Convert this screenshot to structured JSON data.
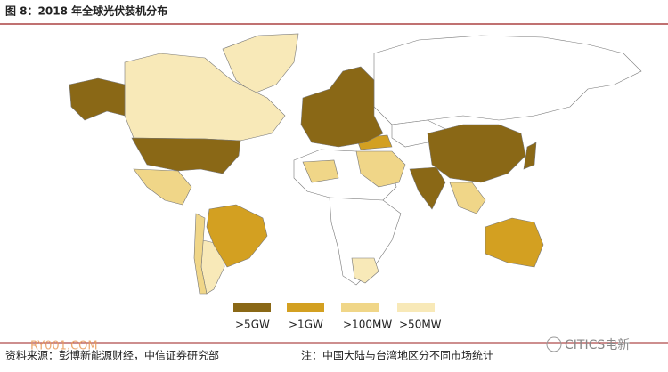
{
  "header": {
    "title": "图 8：2018 年全球光伏装机分布"
  },
  "legend": [
    {
      "label": ">5GW",
      "color": "#8a6816"
    },
    {
      "label": ">1GW",
      "color": "#d3a021"
    },
    {
      "label": ">100MW",
      "color": "#f0d688"
    },
    {
      "label": ">50MW",
      "color": "#f8e9b8"
    }
  ],
  "footer": {
    "source": "资料来源：彭博新能源财经，中信证券研究部",
    "note": "注：中国大陆与台湾地区分不同市场统计"
  },
  "watermarks": [
    "RY001.COM",
    "CITICS电新"
  ]
}
